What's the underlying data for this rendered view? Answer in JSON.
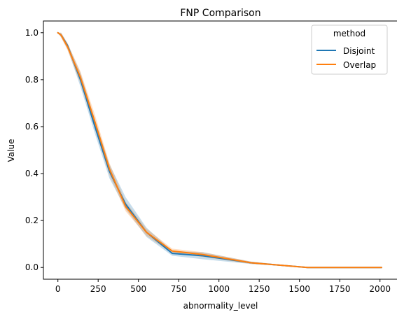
{
  "chart_data": {
    "type": "line",
    "title": "FNP Comparison",
    "xlabel": "abnormality_level",
    "ylabel": "Value",
    "xlim": [
      -90,
      2110
    ],
    "ylim": [
      -0.05,
      1.05
    ],
    "xticks": [
      0,
      250,
      500,
      750,
      1000,
      1250,
      1500,
      1750,
      2000
    ],
    "xtick_labels": [
      "0",
      "250",
      "500",
      "750",
      "1000",
      "1250",
      "1500",
      "1750",
      "2000"
    ],
    "yticks": [
      0.0,
      0.2,
      0.4,
      0.6,
      0.8,
      1.0
    ],
    "ytick_labels": [
      "0.0",
      "0.2",
      "0.4",
      "0.6",
      "0.8",
      "1.0"
    ],
    "legend": {
      "title": "method",
      "placement": "top-right"
    },
    "grid": false,
    "series": [
      {
        "name": "Disjoint",
        "color": "#1f77b4",
        "x": [
          0,
          20,
          60,
          140,
          230,
          320,
          420,
          550,
          710,
          900,
          1200,
          1550,
          2010
        ],
        "y": [
          1.0,
          0.99,
          0.945,
          0.8,
          0.6,
          0.41,
          0.27,
          0.15,
          0.06,
          0.05,
          0.02,
          0.0,
          0.0
        ],
        "ci_low": [
          1.0,
          0.98,
          0.93,
          0.77,
          0.57,
          0.38,
          0.25,
          0.13,
          0.05,
          0.035,
          0.015,
          0.0,
          0.0
        ],
        "ci_high": [
          1.0,
          1.0,
          0.955,
          0.83,
          0.63,
          0.44,
          0.3,
          0.17,
          0.07,
          0.065,
          0.025,
          0.0,
          0.0
        ]
      },
      {
        "name": "Overlap",
        "color": "#ff7f0e",
        "x": [
          0,
          20,
          60,
          140,
          230,
          320,
          420,
          550,
          710,
          900,
          1200,
          1550,
          2010
        ],
        "y": [
          1.0,
          0.99,
          0.94,
          0.81,
          0.62,
          0.42,
          0.26,
          0.15,
          0.07,
          0.055,
          0.02,
          0.0,
          0.0
        ],
        "ci_low": [
          1.0,
          0.98,
          0.925,
          0.785,
          0.59,
          0.395,
          0.24,
          0.135,
          0.06,
          0.045,
          0.015,
          0.0,
          0.0
        ],
        "ci_high": [
          1.0,
          1.0,
          0.955,
          0.835,
          0.65,
          0.445,
          0.28,
          0.165,
          0.08,
          0.065,
          0.025,
          0.0,
          0.0
        ]
      }
    ]
  }
}
